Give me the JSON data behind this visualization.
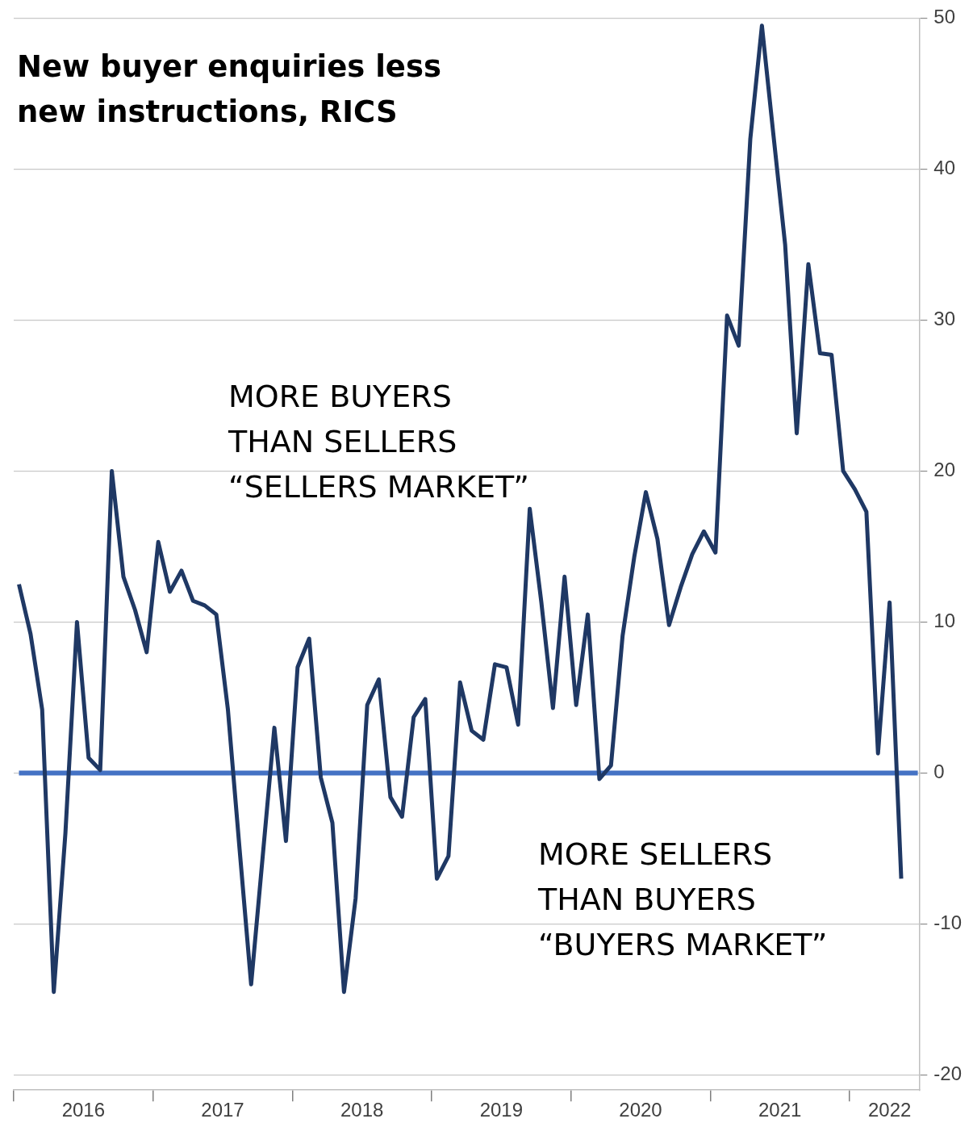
{
  "chart_data": {
    "type": "line",
    "title": "New buyer enquiries less\nnew instructions, RICS",
    "annotations": [
      "MORE BUYERS\nTHAN SELLERS\n“SELLERS MARKET”",
      "MORE SELLERS\nTHAN BUYERS\n“BUYERS MARKET”"
    ],
    "x": [
      "2016-01-15",
      "2016-02-15",
      "2016-03-15",
      "2016-04-15",
      "2016-05-15",
      "2016-06-15",
      "2016-07-15",
      "2016-08-15",
      "2016-09-15",
      "2016-10-15",
      "2016-11-15",
      "2016-12-15",
      "2017-01-15",
      "2017-02-15",
      "2017-03-15",
      "2017-04-15",
      "2017-05-15",
      "2017-06-15",
      "2017-07-15",
      "2017-08-15",
      "2017-09-15",
      "2017-10-15",
      "2017-11-15",
      "2017-12-15",
      "2018-01-15",
      "2018-02-15",
      "2018-03-15",
      "2018-04-15",
      "2018-05-15",
      "2018-06-15",
      "2018-07-15",
      "2018-08-15",
      "2018-09-15",
      "2018-10-15",
      "2018-11-15",
      "2018-12-15",
      "2019-01-15",
      "2019-02-15",
      "2019-03-15",
      "2019-04-15",
      "2019-05-15",
      "2019-06-15",
      "2019-07-15",
      "2019-08-15",
      "2019-09-15",
      "2019-10-15",
      "2019-11-15",
      "2019-12-15",
      "2020-01-15",
      "2020-02-15",
      "2020-03-15",
      "2020-04-15",
      "2020-05-15",
      "2020-06-15",
      "2020-07-15",
      "2020-08-15",
      "2020-09-15",
      "2020-10-15",
      "2020-11-15",
      "2020-12-15",
      "2021-01-15",
      "2021-02-15",
      "2021-03-15",
      "2021-04-15",
      "2021-05-15",
      "2021-06-15",
      "2021-07-15",
      "2021-08-15",
      "2021-09-15",
      "2021-10-15",
      "2021-11-15",
      "2021-12-15",
      "2022-01-15",
      "2022-02-15",
      "2022-03-15",
      "2022-04-15",
      "2022-05-15"
    ],
    "series": [
      {
        "color": "#1f3864",
        "values": [
          12.5,
          9.2,
          4.2,
          -14.5,
          -4,
          10,
          1,
          0.2,
          20,
          13,
          10.8,
          8,
          15.3,
          12,
          13.4,
          11.4,
          11.1,
          10.5,
          4.2,
          -5,
          -14,
          -5.5,
          3,
          -4.5,
          7,
          8.9,
          -0.3,
          -3.3,
          -14.5,
          -8.3,
          4.5,
          6.2,
          -1.6,
          -2.9,
          3.7,
          4.9,
          -7,
          -5.5,
          6,
          2.8,
          2.2,
          7.2,
          7,
          3.2,
          17.5,
          11.3,
          4.3,
          13,
          4.5,
          10.5,
          -0.4,
          0.5,
          9.1,
          14.3,
          18.6,
          15.5,
          9.8,
          12.3,
          14.5,
          16,
          14.6,
          30.3,
          28.3,
          42,
          49.5,
          42.2,
          35,
          22.5,
          33.7,
          27.8,
          27.7,
          20,
          18.8,
          17.3,
          1.3,
          11.3,
          -7
        ]
      }
    ],
    "ref_lines": [
      {
        "axis": "y",
        "value": 0,
        "color": "#4472c4"
      }
    ],
    "xlim": [
      "2016-01-01",
      "2022-07-01"
    ],
    "xticks": [
      {
        "value": "2016-01-01",
        "label": null
      },
      {
        "value": "2016-07-01",
        "label": "2016"
      },
      {
        "value": "2017-01-01",
        "label": null
      },
      {
        "value": "2017-07-01",
        "label": "2017"
      },
      {
        "value": "2018-01-01",
        "label": null
      },
      {
        "value": "2018-07-01",
        "label": "2018"
      },
      {
        "value": "2019-01-01",
        "label": null
      },
      {
        "value": "2019-07-01",
        "label": "2019"
      },
      {
        "value": "2020-01-01",
        "label": null
      },
      {
        "value": "2020-07-01",
        "label": "2020"
      },
      {
        "value": "2021-01-01",
        "label": null
      },
      {
        "value": "2021-07-01",
        "label": "2021"
      },
      {
        "value": "2022-01-01",
        "label": null
      },
      {
        "value": "2022-04-15",
        "label": "2022"
      }
    ],
    "ylim": [
      -21,
      50
    ],
    "yticks": [
      -20,
      -10,
      0,
      10,
      20,
      30,
      40,
      50
    ],
    "grid": "y",
    "legend": false,
    "marker": "none",
    "line_style": "solid"
  }
}
